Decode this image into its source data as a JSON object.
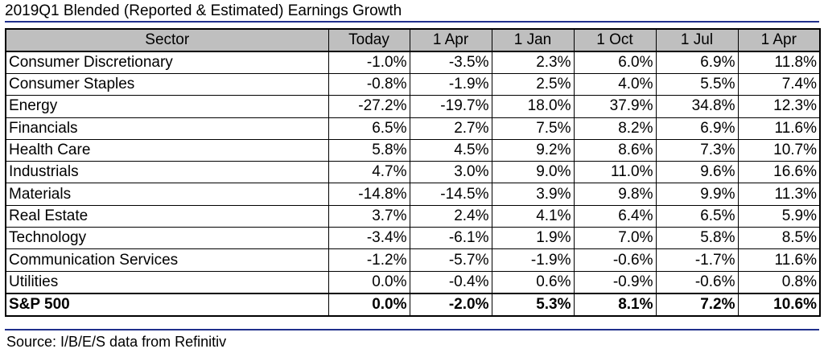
{
  "title": "2019Q1 Blended (Reported & Estimated) Earnings Growth",
  "source": "Source: I/B/E/S data from Refinitiv",
  "chart_data": {
    "type": "table",
    "title": "2019Q1 Blended (Reported & Estimated) Earnings Growth",
    "columns": [
      "Sector",
      "Today",
      "1 Apr",
      "1 Jan",
      "1 Oct",
      "1 Jul",
      "1 Apr"
    ],
    "rows": [
      {
        "sector": "Consumer Discretionary",
        "values": [
          "-1.0%",
          "-3.5%",
          "2.3%",
          "6.0%",
          "6.9%",
          "11.8%"
        ]
      },
      {
        "sector": "Consumer Staples",
        "values": [
          "-0.8%",
          "-1.9%",
          "2.5%",
          "4.0%",
          "5.5%",
          "7.4%"
        ]
      },
      {
        "sector": "Energy",
        "values": [
          "-27.2%",
          "-19.7%",
          "18.0%",
          "37.9%",
          "34.8%",
          "12.3%"
        ]
      },
      {
        "sector": "Financials",
        "values": [
          "6.5%",
          "2.7%",
          "7.5%",
          "8.2%",
          "6.9%",
          "11.6%"
        ]
      },
      {
        "sector": "Health Care",
        "values": [
          "5.8%",
          "4.5%",
          "9.2%",
          "8.6%",
          "7.3%",
          "10.7%"
        ]
      },
      {
        "sector": "Industrials",
        "values": [
          "4.7%",
          "3.0%",
          "9.0%",
          "11.0%",
          "9.6%",
          "16.6%"
        ]
      },
      {
        "sector": "Materials",
        "values": [
          "-14.8%",
          "-14.5%",
          "3.9%",
          "9.8%",
          "9.9%",
          "11.3%"
        ]
      },
      {
        "sector": "Real Estate",
        "values": [
          "3.7%",
          "2.4%",
          "4.1%",
          "6.4%",
          "6.5%",
          "5.9%"
        ]
      },
      {
        "sector": "Technology",
        "values": [
          "-3.4%",
          "-6.1%",
          "1.9%",
          "7.0%",
          "5.8%",
          "8.5%"
        ]
      },
      {
        "sector": "Communication Services",
        "values": [
          "-1.2%",
          "-5.7%",
          "-1.9%",
          "-0.6%",
          "-1.7%",
          "11.6%"
        ]
      },
      {
        "sector": "Utilities",
        "values": [
          "0.0%",
          "-0.4%",
          "0.6%",
          "-0.9%",
          "-0.6%",
          "0.8%"
        ]
      }
    ],
    "total": {
      "sector": "S&P 500",
      "values": [
        "0.0%",
        "-2.0%",
        "5.3%",
        "8.1%",
        "7.2%",
        "10.6%"
      ]
    }
  }
}
